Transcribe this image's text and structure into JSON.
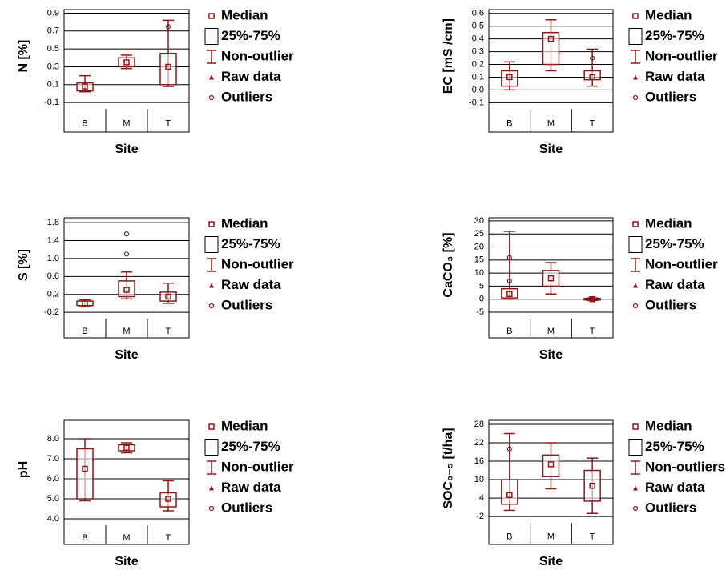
{
  "chart_data": [
    {
      "type": "box",
      "ylabel": "N [%]",
      "xlabel": "Site",
      "categories": [
        "B",
        "M",
        "T"
      ],
      "color": "#8b1a1a",
      "ylim": [
        -0.43,
        0.94
      ],
      "yticks": [
        0.9,
        0.7,
        0.5,
        0.3,
        0.1,
        -0.1
      ],
      "grid": true,
      "boxes": [
        {
          "min": 0.02,
          "q1": 0.03,
          "median": 0.08,
          "q3": 0.12,
          "max": 0.2,
          "outliers": []
        },
        {
          "min": 0.28,
          "q1": 0.3,
          "median": 0.35,
          "q3": 0.4,
          "max": 0.43,
          "outliers": []
        },
        {
          "min": 0.08,
          "q1": 0.1,
          "median": 0.3,
          "q3": 0.45,
          "max": 0.82,
          "outliers": [
            0.75
          ]
        }
      ],
      "legend": [
        "Median",
        "25%-75%",
        "Non-outlier",
        "Raw data",
        "Outliers"
      ]
    },
    {
      "type": "box",
      "ylabel": "EC [mS /cm]",
      "xlabel": "Site",
      "categories": [
        "B",
        "M",
        "T"
      ],
      "color": "#8b1a1a",
      "ylim": [
        -0.33,
        0.63
      ],
      "yticks": [
        0.6,
        0.5,
        0.4,
        0.3,
        0.2,
        0.1,
        {
          "value": 0,
          "label": "0.0"
        },
        -0.1
      ],
      "grid": true,
      "boxes": [
        {
          "min": 0,
          "q1": 0.03,
          "median": 0.1,
          "q3": 0.15,
          "max": 0.22,
          "outliers": []
        },
        {
          "min": 0.15,
          "q1": 0.2,
          "median": 0.4,
          "q3": 0.45,
          "max": 0.55,
          "outliers": []
        },
        {
          "min": 0.03,
          "q1": 0.08,
          "median": 0.1,
          "q3": 0.15,
          "max": 0.32,
          "outliers": [
            0.25
          ]
        }
      ],
      "legend": [
        "Median",
        "25%-75%",
        "Non-outlier",
        "Raw data",
        "Outliers"
      ]
    },
    {
      "type": "box",
      "ylabel": "S [%]",
      "xlabel": "Site",
      "categories": [
        "B",
        "M",
        "T"
      ],
      "color": "#8b1a1a",
      "ylim": [
        -0.77,
        1.91
      ],
      "yticks": [
        1.8,
        1.4,
        {
          "value": 1,
          "label": "1.0"
        },
        0.6,
        0.2,
        -0.2
      ],
      "grid": true,
      "boxes": [
        {
          "min": -0.08,
          "q1": -0.05,
          "median": 0,
          "q3": 0.05,
          "max": 0.08,
          "outliers": []
        },
        {
          "min": 0.1,
          "q1": 0.15,
          "median": 0.3,
          "q3": 0.5,
          "max": 0.7,
          "outliers": [
            1.1,
            1.55
          ]
        },
        {
          "min": 0,
          "q1": 0.05,
          "median": 0.15,
          "q3": 0.25,
          "max": 0.45,
          "outliers": []
        }
      ],
      "legend": [
        "Median",
        "25%-75%",
        "Non-outlier",
        "Raw data",
        "Outliers"
      ]
    },
    {
      "type": "box",
      "ylabel": "CaCO₃ [%]",
      "xlabel": "Site",
      "categories": [
        "B",
        "M",
        "T"
      ],
      "color": "#8b1a1a",
      "ylim": [
        -14.8,
        31.2
      ],
      "yticks": [
        30,
        25,
        20,
        15,
        10,
        5,
        0,
        -5
      ],
      "grid": true,
      "boxes": [
        {
          "min": 0,
          "q1": 0.5,
          "median": 2,
          "q3": 4,
          "max": 26,
          "outliers": [
            16,
            7
          ]
        },
        {
          "min": 2,
          "q1": 5,
          "median": 8,
          "q3": 11,
          "max": 14,
          "outliers": []
        },
        {
          "min": -0.5,
          "q1": -0.3,
          "median": 0,
          "q3": 0.3,
          "max": 0.5,
          "outliers": []
        }
      ],
      "legend": [
        "Median",
        "25%-75%",
        "Non-outlier",
        "Raw data",
        "Outliers"
      ]
    },
    {
      "type": "box",
      "ylabel": "pH",
      "xlabel": "Site",
      "categories": [
        "B",
        "M",
        "T"
      ],
      "color": "#8b1a1a",
      "ylim": [
        2.72,
        8.92
      ],
      "yticks": [
        {
          "value": 8,
          "label": "8.0"
        },
        {
          "value": 7,
          "label": "7.0"
        },
        {
          "value": 6,
          "label": "6.0"
        },
        {
          "value": 5,
          "label": "5.0"
        },
        {
          "value": 4,
          "label": "4.0"
        }
      ],
      "grid": true,
      "boxes": [
        {
          "min": 4.9,
          "q1": 5,
          "median": 6.5,
          "q3": 7.5,
          "max": 8,
          "outliers": []
        },
        {
          "min": 7.3,
          "q1": 7.4,
          "median": 7.55,
          "q3": 7.7,
          "max": 7.8,
          "outliers": []
        },
        {
          "min": 4.4,
          "q1": 4.6,
          "median": 5,
          "q3": 5.3,
          "max": 5.9,
          "outliers": []
        }
      ],
      "legend": [
        "Median",
        "25%-75%",
        "Non-outlier",
        "Raw data",
        "Outliers"
      ]
    },
    {
      "type": "box",
      "ylabel": "SOC₀₋₅ [t/ha]",
      "xlabel": "Site",
      "categories": [
        "B",
        "M",
        "T"
      ],
      "color": "#8b1a1a",
      "ylim": [
        -11.1,
        29.3
      ],
      "yticks": [
        28,
        22,
        16,
        10,
        4,
        -2
      ],
      "grid": true,
      "boxes": [
        {
          "min": 0,
          "q1": 2,
          "median": 5,
          "q3": 10,
          "max": 25,
          "outliers": [
            20
          ]
        },
        {
          "min": 7,
          "q1": 11,
          "median": 15,
          "q3": 18,
          "max": 22,
          "outliers": []
        },
        {
          "min": -1,
          "q1": 3,
          "median": 8,
          "q3": 13,
          "max": 17,
          "outliers": []
        }
      ],
      "legend": [
        "Median",
        "25%-75%",
        "Non-outliers",
        "Raw data",
        "Outliers"
      ]
    }
  ]
}
